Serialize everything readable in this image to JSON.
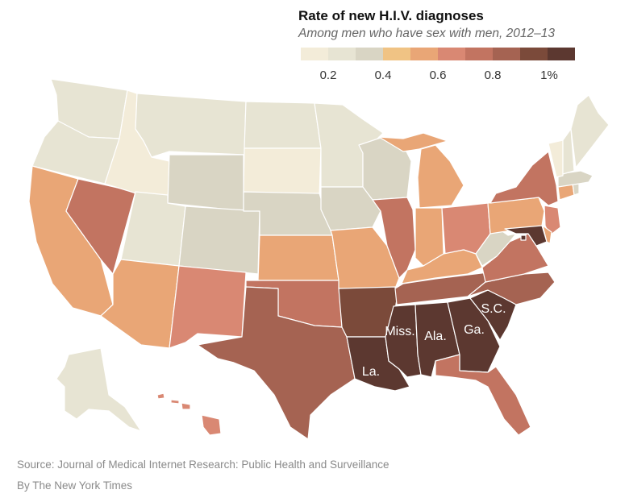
{
  "legend": {
    "title": "Rate of new H.I.V. diagnoses",
    "subtitle": "Among men who have sex with men, 2012–13",
    "colors": [
      "#f3ecd9",
      "#e7e4d3",
      "#d9d5c4",
      "#f0c384",
      "#e9a676",
      "#d98873",
      "#c27461",
      "#a56352",
      "#7b4a3a",
      "#5c3830"
    ],
    "tick_labels": [
      "0.2",
      "0.4",
      "0.6",
      "0.8",
      "1%"
    ]
  },
  "map": {
    "labels": [
      "Miss.",
      "Ala.",
      "Ga.",
      "S.C.",
      "La."
    ],
    "state_rates": {
      "WA": 0.2,
      "OR": 0.2,
      "CA": 0.5,
      "NV": 0.7,
      "ID": 0.1,
      "MT": 0.2,
      "WY": 0.3,
      "UT": 0.2,
      "AZ": 0.5,
      "CO": 0.3,
      "NM": 0.6,
      "ND": 0.2,
      "SD": 0.1,
      "NE": 0.3,
      "KS": 0.5,
      "OK": 0.7,
      "TX": 0.8,
      "MN": 0.2,
      "IA": 0.3,
      "MO": 0.5,
      "AR": 0.9,
      "LA": 1.0,
      "WI": 0.3,
      "IL": 0.7,
      "MI": 0.5,
      "IN": 0.5,
      "OH": 0.6,
      "KY": 0.5,
      "TN": 0.8,
      "MS": 1.0,
      "AL": 1.0,
      "GA": 1.0,
      "FL": 0.7,
      "SC": 1.0,
      "NC": 0.8,
      "VA": 0.7,
      "WV": 0.3,
      "PA": 0.5,
      "NY": 0.7,
      "NJ": 0.6,
      "DE": 0.5,
      "MD": 1.0,
      "DC": 1.0,
      "CT": 0.5,
      "RI": 0.3,
      "MA": 0.3,
      "VT": 0.1,
      "NH": 0.2,
      "ME": 0.2,
      "AK": 0.2,
      "HI": 0.6
    }
  },
  "footer": {
    "source": "Source: Journal of Medical Internet Research: Public Health and Surveillance",
    "credit": "By The New York Times"
  }
}
